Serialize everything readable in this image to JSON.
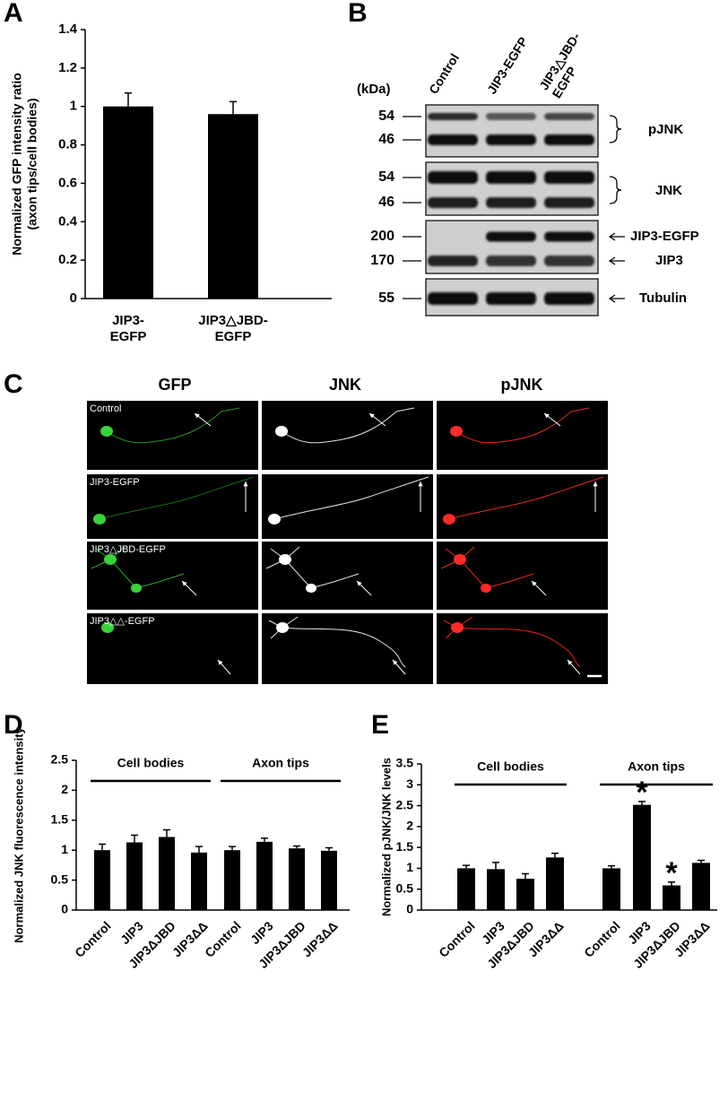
{
  "panel_labels": [
    "A",
    "B",
    "C",
    "D",
    "E"
  ],
  "chart_data": [
    {
      "type": "bar",
      "ylabel": "Normalized GFP intensity ratio\n(axon tips/cell bodies)",
      "categories": [
        "JIP3-\nEGFP",
        "JIP3△JBD-\nEGFP"
      ],
      "values": [
        1.0,
        0.96
      ],
      "errors": [
        0.07,
        0.065
      ],
      "color": "#000000",
      "ylim": [
        0,
        1.4
      ],
      "yticks": [
        0,
        0.2,
        0.4,
        0.6,
        0.8,
        1,
        1.2,
        1.4
      ]
    },
    {
      "type": "bar",
      "ylabel": "Normalized JNK fluorescence intensity",
      "groups": [
        "Cell bodies",
        "Axon tips"
      ],
      "categories": [
        "Control",
        "JIP3",
        "JIP3ΔJBD",
        "JIP3ΔΔ",
        "Control",
        "JIP3",
        "JIP3ΔJBD",
        "JIP3ΔΔ"
      ],
      "values": [
        1.0,
        1.13,
        1.22,
        0.96,
        1.0,
        1.14,
        1.03,
        0.99
      ],
      "errors": [
        0.1,
        0.12,
        0.12,
        0.1,
        0.06,
        0.06,
        0.04,
        0.05
      ],
      "color": "#000000",
      "ylim": [
        0,
        2.5
      ],
      "yticks": [
        0,
        0.5,
        1,
        1.5,
        2,
        2.5
      ]
    },
    {
      "type": "bar",
      "ylabel": "Normalized pJNK/JNK levels",
      "groups": [
        "Cell bodies",
        "Axon tips"
      ],
      "categories": [
        "Control",
        "JIP3",
        "JIP3ΔJBD",
        "JIP3ΔΔ",
        "Control",
        "JIP3",
        "JIP3ΔJBD",
        "JIP3ΔΔ"
      ],
      "values": [
        1.0,
        0.98,
        0.75,
        1.26,
        1.0,
        2.52,
        0.59,
        1.13
      ],
      "errors": [
        0.07,
        0.16,
        0.12,
        0.1,
        0.06,
        0.08,
        0.08,
        0.06
      ],
      "color": "#000000",
      "annotations": [
        {
          "index": 5,
          "text": "*"
        },
        {
          "index": 6,
          "text": "*"
        }
      ],
      "ylim": [
        0,
        3.5
      ],
      "yticks": [
        0,
        0.5,
        1,
        1.5,
        2,
        2.5,
        3,
        3.5
      ]
    }
  ],
  "blot": {
    "lanes": [
      "Control",
      "JIP3-EGFP",
      "JIP3△JBD-\nEGFP"
    ],
    "unit": "(kDa)",
    "markers": [
      54,
      46,
      54,
      46,
      200,
      170,
      55
    ],
    "targets": [
      "pJNK",
      "JNK",
      "JIP3-EGFP",
      "JIP3",
      "Tubulin"
    ]
  },
  "micrographs": {
    "columns": [
      "GFP",
      "JNK",
      "pJNK"
    ],
    "rows": [
      "Control",
      "JIP3-EGFP",
      "JIP3△JBD-EGFP",
      "JIP3△△-EGFP"
    ]
  }
}
